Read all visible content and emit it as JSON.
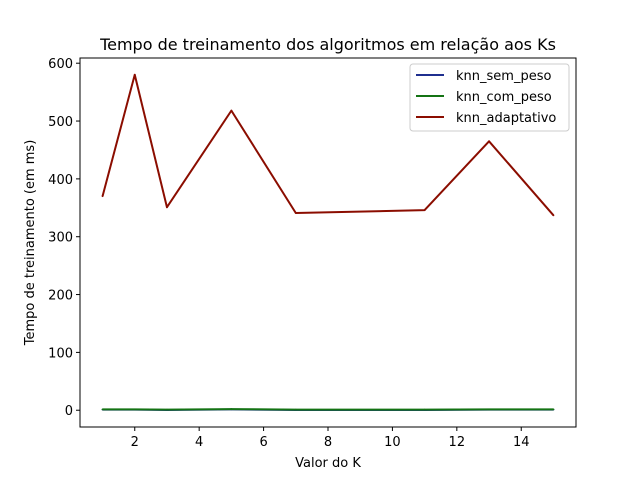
{
  "chart_data": {
    "type": "line",
    "title": "Tempo de treinamento dos algoritmos em relação aos Ks",
    "xlabel": "Valor do K",
    "ylabel": "Tempo de treinamento (em ms)",
    "xlim": [
      0.3,
      15.7
    ],
    "ylim": [
      -29,
      609
    ],
    "xticks": [
      2,
      4,
      6,
      8,
      10,
      12,
      14
    ],
    "yticks": [
      0,
      100,
      200,
      300,
      400,
      500,
      600
    ],
    "grid": false,
    "legend_position": "top-right",
    "series": [
      {
        "name": "knn_sem_peso",
        "color": "#1f2f8f",
        "x": [
          1,
          2,
          3,
          5,
          7,
          11,
          13,
          15
        ],
        "y": [
          1,
          1,
          0.5,
          1.5,
          0.5,
          0.5,
          1,
          1
        ]
      },
      {
        "name": "knn_com_peso",
        "color": "#147314",
        "x": [
          1,
          2,
          3,
          5,
          7,
          11,
          13,
          15
        ],
        "y": [
          1.5,
          1.5,
          1,
          2,
          1,
          1,
          1.5,
          1.5
        ]
      },
      {
        "name": "knn_adaptativo",
        "color": "#8b0d00",
        "x": [
          1,
          2,
          3,
          5,
          7,
          11,
          13,
          15
        ],
        "y": [
          370,
          580,
          351,
          518,
          341,
          346,
          465,
          337
        ]
      }
    ]
  }
}
